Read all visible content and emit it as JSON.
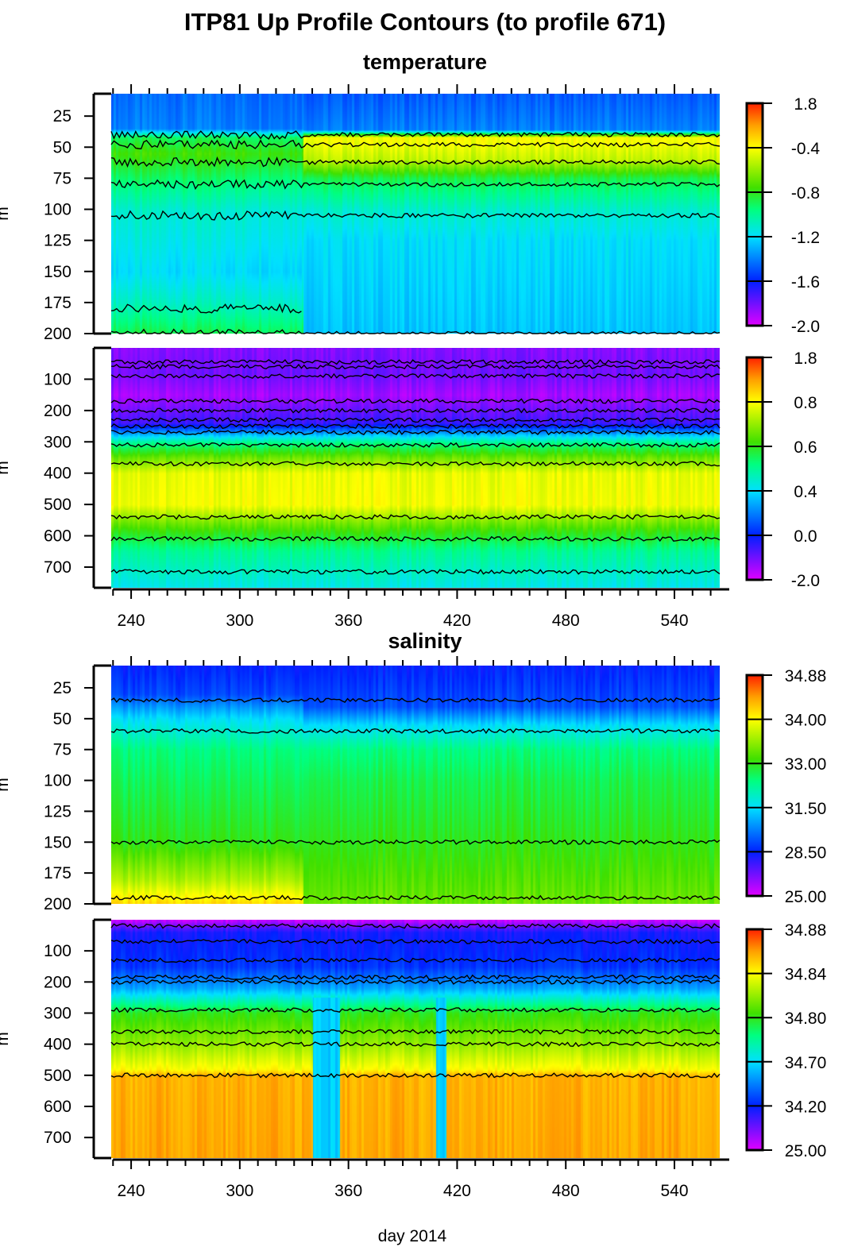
{
  "title": "ITP81 Up Profile Contours (to profile 671)",
  "chart_data": [
    {
      "type": "heatmap",
      "section": "temperature",
      "panel": "upper",
      "subtitle": "temperature",
      "ylabel": "m",
      "xlim": [
        229,
        565
      ],
      "ylim": [
        200,
        7
      ],
      "yticks": [
        "25",
        "50",
        "75",
        "100",
        "125",
        "150",
        "175",
        "200"
      ],
      "ytick_values": [
        25,
        50,
        75,
        100,
        125,
        150,
        175,
        200
      ],
      "colorbar_labels": [
        "1.8",
        "-0.4",
        "-0.8",
        "-1.2",
        "-1.6",
        "-2.0"
      ],
      "contour_depths_m": [
        40,
        48,
        62,
        80,
        105,
        180,
        200
      ]
    },
    {
      "type": "heatmap",
      "section": "temperature",
      "panel": "lower",
      "ylabel": "m",
      "xlim": [
        229,
        565
      ],
      "ylim": [
        766,
        0
      ],
      "yticks": [
        "100",
        "200",
        "300",
        "400",
        "500",
        "600",
        "700"
      ],
      "ytick_values": [
        100,
        200,
        300,
        400,
        500,
        600,
        700
      ],
      "xticks": [
        "240",
        "300",
        "360",
        "420",
        "480",
        "540"
      ],
      "xtick_values": [
        240,
        300,
        360,
        420,
        480,
        540
      ],
      "colorbar_labels": [
        "1.8",
        "0.8",
        "0.6",
        "0.4",
        "0.0",
        "-2.0"
      ],
      "contour_depths_m": [
        45,
        60,
        90,
        170,
        200,
        230,
        250,
        270,
        310,
        370,
        540,
        610,
        715
      ]
    },
    {
      "type": "heatmap",
      "section": "salinity",
      "panel": "upper",
      "subtitle": "salinity",
      "ylabel": "m",
      "xlim": [
        229,
        565
      ],
      "ylim": [
        200,
        7
      ],
      "yticks": [
        "25",
        "50",
        "75",
        "100",
        "125",
        "150",
        "175",
        "200"
      ],
      "ytick_values": [
        25,
        50,
        75,
        100,
        125,
        150,
        175,
        200
      ],
      "colorbar_labels": [
        "34.88",
        "34.00",
        "33.00",
        "31.50",
        "28.50",
        "25.00"
      ],
      "contour_depths_m": [
        35,
        60,
        150,
        195
      ]
    },
    {
      "type": "heatmap",
      "section": "salinity",
      "panel": "lower",
      "ylabel": "m",
      "xlim": [
        229,
        565
      ],
      "ylim": [
        766,
        0
      ],
      "yticks": [
        "100",
        "200",
        "300",
        "400",
        "500",
        "600",
        "700"
      ],
      "ytick_values": [
        100,
        200,
        300,
        400,
        500,
        600,
        700
      ],
      "xticks": [
        "240",
        "300",
        "360",
        "420",
        "480",
        "540"
      ],
      "xtick_values": [
        240,
        300,
        360,
        420,
        480,
        540
      ],
      "xlabel": "day 2014",
      "colorbar_labels": [
        "34.88",
        "34.84",
        "34.80",
        "34.70",
        "34.20",
        "25.00"
      ],
      "contour_depths_m": [
        20,
        70,
        130,
        185,
        200,
        290,
        360,
        400,
        500
      ]
    }
  ],
  "colors": {
    "colormap": [
      "#e000ff",
      "#0020ff",
      "#00e0ff",
      "#00ff80",
      "#40e000",
      "#ffff00",
      "#ffa000",
      "#ff2000"
    ],
    "contour": "#000000"
  }
}
